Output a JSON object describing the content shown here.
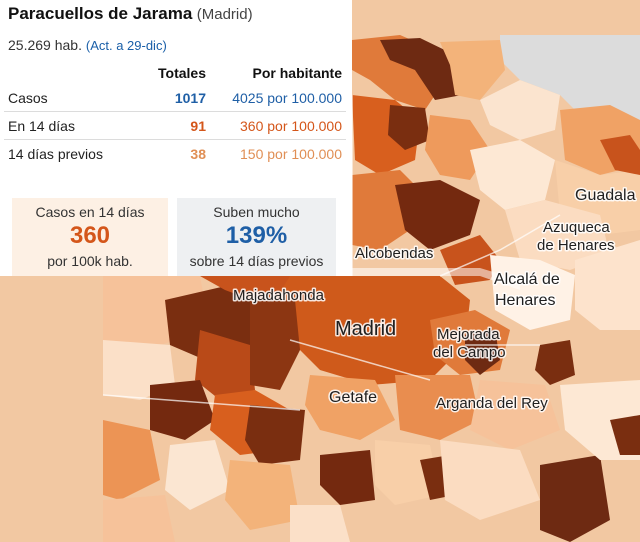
{
  "header": {
    "title": "Paracuellos de Jarama",
    "region": "(Madrid)",
    "population": "25.269 hab.",
    "updated": "(Act. a 29-dic)"
  },
  "table": {
    "columns": [
      "Totales",
      "Por habitante"
    ],
    "rows": [
      {
        "label": "Casos",
        "total": "1017",
        "rate": "4025 por 100.000"
      },
      {
        "label": "En 14 días",
        "total": "91",
        "rate": "360 por 100.000"
      },
      {
        "label": "14 días previos",
        "total": "38",
        "rate": "150 por 100.000"
      }
    ]
  },
  "cards": {
    "cases14": {
      "title": "Casos en 14 días",
      "value": "360",
      "subtitle": "por 100k hab."
    },
    "rise": {
      "title": "Suben mucho",
      "value": "139%",
      "subtitle": "sobre 14 días previos"
    }
  },
  "colors": {
    "total": "#1f5fa6",
    "recent": "#d4561a",
    "previous": "#e08f55",
    "card_highlight": "#fdf0e4",
    "card_neutral": "#eef0f2"
  },
  "map": {
    "labels": {
      "alcobendas": "Alcobendas",
      "guadalajara": "Guadala",
      "azuqueca1": "Azuqueca",
      "azuqueca2": "de Henares",
      "alcala1": "Alcalá de",
      "alcala2": "Henares",
      "majadahonda": "Majadahonda",
      "madrid": "Madrid",
      "mejorada1": "Mejorada",
      "mejorada2": "del Campo",
      "getafe": "Getafe",
      "arganda": "Arganda del Rey"
    }
  }
}
